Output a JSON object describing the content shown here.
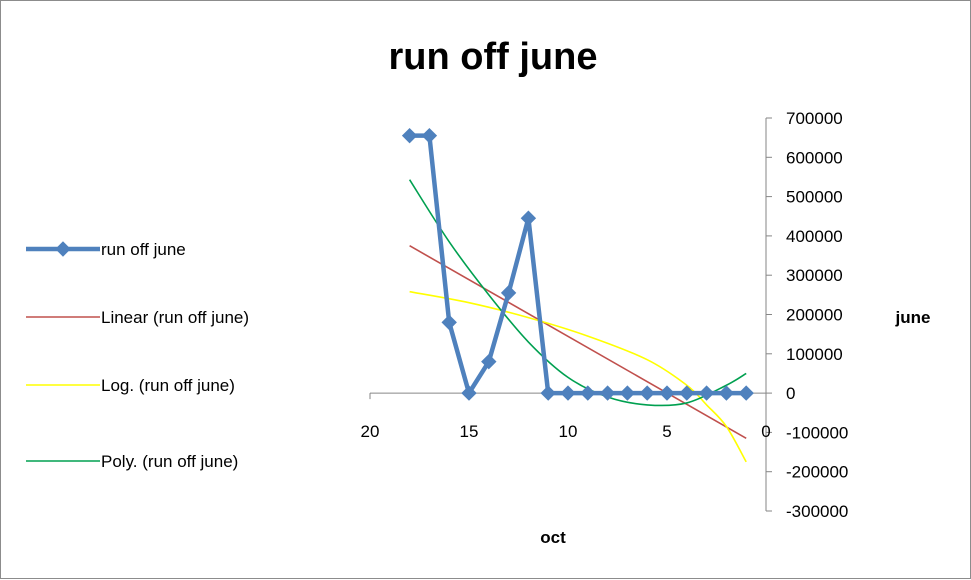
{
  "chart_data": {
    "type": "line",
    "title": "run off june",
    "xlabel": "oct",
    "ylabel": "june",
    "x_reversed": true,
    "xlim": [
      0,
      20
    ],
    "ylim": [
      -300000,
      700000
    ],
    "x_ticks": [
      "20",
      "15",
      "10",
      "5",
      "0"
    ],
    "y_ticks": [
      "700000",
      "600000",
      "500000",
      "400000",
      "300000",
      "200000",
      "100000",
      "0",
      "-100000",
      "-200000",
      "-300000"
    ],
    "legend_position": "left",
    "series": [
      {
        "name": "run off june",
        "color": "#4f81bd",
        "marker": "diamond",
        "x": [
          18,
          17,
          16,
          15,
          14,
          13,
          12,
          11,
          10,
          9,
          8,
          7,
          6,
          5,
          4,
          3,
          2,
          1
        ],
        "y": [
          655000,
          655000,
          180000,
          0,
          80000,
          255000,
          445000,
          0,
          0,
          0,
          0,
          0,
          0,
          0,
          0,
          0,
          0,
          0
        ]
      }
    ],
    "trendlines": [
      {
        "name": "Linear (run off june)",
        "color": "#c0504d",
        "x": [
          18,
          1
        ],
        "y": [
          375000,
          -115000
        ]
      },
      {
        "name": "Log. (run off june)",
        "color": "#ffff00",
        "x": [
          18,
          15,
          12,
          9,
          6,
          4,
          3,
          2,
          1
        ],
        "y": [
          258000,
          230000,
          192000,
          145000,
          85000,
          20000,
          -30000,
          -85000,
          -175000
        ]
      },
      {
        "name": "Poly. (run off june)",
        "color": "#00a050",
        "x": [
          18,
          16,
          14,
          12,
          10,
          8,
          6,
          4,
          2,
          1
        ],
        "y": [
          543000,
          385000,
          250000,
          130000,
          40000,
          -10000,
          -30000,
          -25000,
          20000,
          50000
        ]
      }
    ]
  }
}
